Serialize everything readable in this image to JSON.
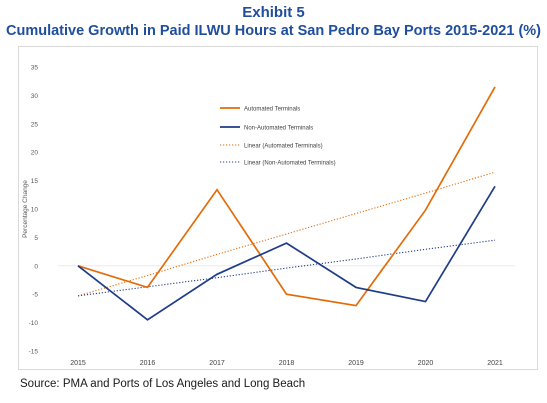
{
  "header": {
    "exhibit": "Exhibit 5",
    "title": "Cumulative Growth in Paid ILWU Hours at San Pedro Bay Ports 2015-2021 (%)"
  },
  "source": "Source: PMA and Ports of Los Angeles and Long Beach",
  "colors": {
    "orange": "#e36c0a",
    "navy": "#1f3c88",
    "title_blue": "#1f4e9d",
    "grid": "#d9d9d9",
    "tick_text": "#595959"
  },
  "chart_data": {
    "type": "line",
    "title": "",
    "xlabel": "",
    "ylabel": "Percentage Change",
    "x": [
      "2015",
      "2016",
      "2017",
      "2018",
      "2019",
      "2020",
      "2021"
    ],
    "ylim": [
      -15,
      35
    ],
    "yticks": [
      35,
      30,
      25,
      20,
      15,
      10,
      5,
      0,
      -5,
      -10,
      -15
    ],
    "grid": false,
    "legend_position": "center-left",
    "series": [
      {
        "name": "Automated Terminals",
        "style": "solid",
        "color": "#e36c0a",
        "values": [
          0,
          -3.8,
          13.4,
          -5.0,
          -7.0,
          9.8,
          31.5
        ]
      },
      {
        "name": "Non-Automated Terminals",
        "style": "solid",
        "color": "#1f3c88",
        "values": [
          0,
          -9.5,
          -1.5,
          4.0,
          -3.8,
          -6.3,
          14.0
        ]
      },
      {
        "name": "Linear (Automated Terminals)",
        "style": "dotted",
        "color": "#e36c0a",
        "values": [
          -5.3,
          -1.7,
          2.0,
          5.6,
          9.2,
          12.8,
          16.5
        ]
      },
      {
        "name": "Linear (Non-Automated Terminals)",
        "style": "dotted",
        "color": "#1f3c88",
        "values": [
          -5.3,
          -3.7,
          -2.1,
          -0.4,
          1.2,
          2.9,
          4.5
        ]
      }
    ]
  }
}
